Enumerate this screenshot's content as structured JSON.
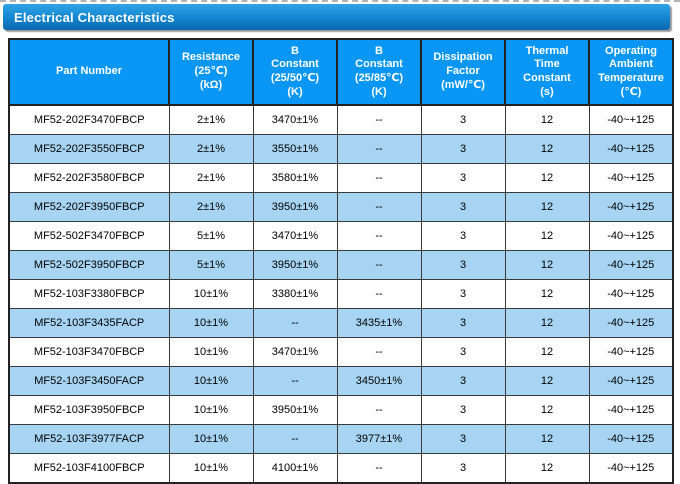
{
  "section": {
    "title": "Electrical Characteristics"
  },
  "colors": {
    "title_gradient_top": "#2FA3E6",
    "title_gradient_bottom": "#0C67AE",
    "header_blue": "#0A96F5",
    "row_alt_blue": "#A6D4F2",
    "header_text": "#FFFFFF",
    "border_dark": "#222222"
  },
  "table": {
    "headers": [
      "Part Number",
      "Resistance\n(25℃)\n(kΩ)",
      "B\nConstant\n(25/50℃)\n(K)",
      "B\nConstant\n(25/85℃)\n(K)",
      "Dissipation\nFactor\n(mW/℃)",
      "Thermal\nTime\nConstant\n(s)",
      "Operating\nAmbient\nTemperature\n(℃)"
    ],
    "rows": [
      [
        "MF52-202F3470FBCP",
        "2±1%",
        "3470±1%",
        "--",
        "3",
        "12",
        "-40~+125"
      ],
      [
        "MF52-202F3550FBCP",
        "2±1%",
        "3550±1%",
        "--",
        "3",
        "12",
        "-40~+125"
      ],
      [
        "MF52-202F3580FBCP",
        "2±1%",
        "3580±1%",
        "--",
        "3",
        "12",
        "-40~+125"
      ],
      [
        "MF52-202F3950FBCP",
        "2±1%",
        "3950±1%",
        "--",
        "3",
        "12",
        "-40~+125"
      ],
      [
        "MF52-502F3470FBCP",
        "5±1%",
        "3470±1%",
        "--",
        "3",
        "12",
        "-40~+125"
      ],
      [
        "MF52-502F3950FBCP",
        "5±1%",
        "3950±1%",
        "--",
        "3",
        "12",
        "-40~+125"
      ],
      [
        "MF52-103F3380FBCP",
        "10±1%",
        "3380±1%",
        "--",
        "3",
        "12",
        "-40~+125"
      ],
      [
        "MF52-103F3435FACP",
        "10±1%",
        "--",
        "3435±1%",
        "3",
        "12",
        "-40~+125"
      ],
      [
        "MF52-103F3470FBCP",
        "10±1%",
        "3470±1%",
        "--",
        "3",
        "12",
        "-40~+125"
      ],
      [
        "MF52-103F3450FACP",
        "10±1%",
        "--",
        "3450±1%",
        "3",
        "12",
        "-40~+125"
      ],
      [
        "MF52-103F3950FBCP",
        "10±1%",
        "3950±1%",
        "--",
        "3",
        "12",
        "-40~+125"
      ],
      [
        "MF52-103F3977FACP",
        "10±1%",
        "--",
        "3977±1%",
        "3",
        "12",
        "-40~+125"
      ],
      [
        "MF52-103F4100FBCP",
        "10±1%",
        "4100±1%",
        "--",
        "3",
        "12",
        "-40~+125"
      ]
    ]
  }
}
